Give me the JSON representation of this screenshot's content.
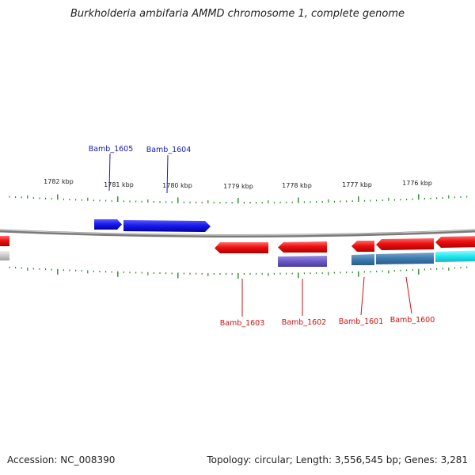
{
  "title": "Burkholderia ambifaria AMMD chromosome 1, complete genome",
  "footer": {
    "accession": "Accession: NC_008390",
    "summary": "Topology: circular; Length: 3,556,545 bp; Genes: 3,281"
  },
  "map_data": {
    "view_range_kbp": [
      1775.3,
      1783.0
    ],
    "scale_labels": [
      "1776 kbp",
      "1777 kbp",
      "1778 kbp",
      "1779 kbp",
      "1780 kbp",
      "1781 kbp",
      "1782 kbp"
    ],
    "colors": {
      "plus_strand": "#1a1aee",
      "minus_strand": "#ee1111",
      "plus_label": "#1a1ab0",
      "minus_label": "#cc1111",
      "tick": "#2a8a2a",
      "backbone": "#9a9a9a"
    },
    "genes": [
      {
        "name": "Bamb_1605",
        "strand": "+"
      },
      {
        "name": "Bamb_1604",
        "strand": "+"
      },
      {
        "name": "Bamb_1603",
        "strand": "-"
      },
      {
        "name": "Bamb_1602",
        "strand": "-"
      },
      {
        "name": "Bamb_1601",
        "strand": "-"
      },
      {
        "name": "Bamb_1600",
        "strand": "-"
      }
    ]
  }
}
